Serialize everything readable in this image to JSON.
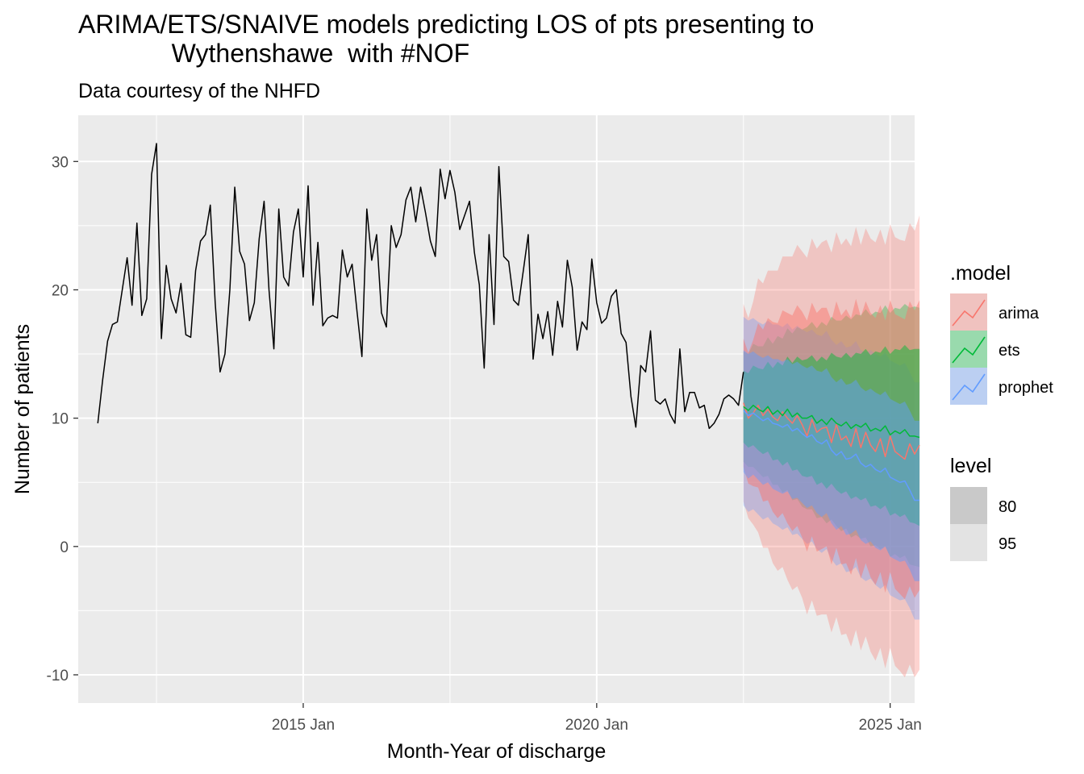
{
  "chart_data": {
    "type": "line",
    "title": "ARIMA/ETS/SNAIVE models predicting LOS of pts presenting to\n             Wythenshawe  with #NOF",
    "subtitle": "Data courtesy of the NHFD",
    "xlabel": "Month-Year of discharge",
    "ylabel": "Number of patients",
    "xlim": [
      "2011-03",
      "2025-06"
    ],
    "ylim": [
      -12.2,
      33.6
    ],
    "y_ticks": [
      -10,
      0,
      10,
      20,
      30
    ],
    "x_ticks": [
      {
        "date": "2015-01",
        "label": "2015 Jan"
      },
      {
        "date": "2020-01",
        "label": "2020 Jan"
      },
      {
        "date": "2025-01",
        "label": "2025 Jan"
      }
    ],
    "x_minor_dates": [
      "2012-07",
      "2017-07",
      "2022-07"
    ],
    "grid": true,
    "legend_position": "right",
    "history": {
      "start": "2011-07",
      "values": [
        9.6,
        13.0,
        16.0,
        17.3,
        17.5,
        20.0,
        22.5,
        18.8,
        25.2,
        18.0,
        19.3,
        29.0,
        31.4,
        16.2,
        21.9,
        19.3,
        18.2,
        20.5,
        16.5,
        16.3,
        21.5,
        23.8,
        24.3,
        26.6,
        19.0,
        13.6,
        15.0,
        20.0,
        28.0,
        23.0,
        22.0,
        17.6,
        19.0,
        24.0,
        26.9,
        20.0,
        15.4,
        26.3,
        21.0,
        20.3,
        24.5,
        26.3,
        21.0,
        28.1,
        18.8,
        23.7,
        17.2,
        17.8,
        18.0,
        17.8,
        23.1,
        21.0,
        22.0,
        18.3,
        14.8,
        26.3,
        22.3,
        24.3,
        18.2,
        17.1,
        25.0,
        23.3,
        24.3,
        27.0,
        28.0,
        25.3,
        28.0,
        26.0,
        23.8,
        22.6,
        29.4,
        27.1,
        29.3,
        27.6,
        24.7,
        25.8,
        26.9,
        22.9,
        20.4,
        13.9,
        24.3,
        17.3,
        29.6,
        22.6,
        22.2,
        19.2,
        18.8,
        21.5,
        24.3,
        14.6,
        18.1,
        16.2,
        18.3,
        14.9,
        19.1,
        17.1,
        22.3,
        20.2,
        15.3,
        17.5,
        16.9,
        22.4,
        19.0,
        17.4,
        17.8,
        19.5,
        20.0,
        16.6,
        15.9,
        11.7,
        9.3,
        14.1,
        13.6,
        16.8,
        11.4,
        11.1,
        11.5,
        10.3,
        9.6,
        15.4,
        10.5,
        12.0,
        12.0,
        10.8,
        11.0,
        9.2,
        9.6,
        10.3,
        11.5,
        11.8,
        11.5,
        11.0,
        13.6
      ]
    },
    "forecast_start": "2022-07",
    "series": [
      {
        "name": "arima",
        "color": "#F8766D",
        "mean": [
          11.2,
          10.0,
          10.4,
          11.0,
          10.2,
          10.7,
          10.1,
          9.8,
          10.5,
          10.0,
          9.6,
          10.2,
          9.5,
          8.6,
          9.9,
          8.9,
          9.2,
          9.3,
          8.1,
          9.5,
          8.3,
          8.6,
          7.8,
          9.2,
          7.7,
          8.9,
          7.9,
          7.4,
          8.4,
          7.0,
          8.6,
          7.4,
          7.1,
          6.8,
          8.0,
          7.2,
          7.9
        ],
        "lo80": [
          6.2,
          4.9,
          4.7,
          4.6,
          3.5,
          3.6,
          2.7,
          2.2,
          2.6,
          1.8,
          1.2,
          1.6,
          0.7,
          -0.4,
          0.8,
          -0.4,
          -0.2,
          0.0,
          -1.4,
          -0.1,
          -1.4,
          -1.3,
          -2.2,
          -0.9,
          -2.5,
          -1.3,
          -2.4,
          -3.0,
          -2.0,
          -3.6,
          -2.0,
          -3.3,
          -3.7,
          -4.1,
          -3.1,
          -4.0,
          -3.4
        ],
        "hi80": [
          16.2,
          15.1,
          16.1,
          17.4,
          16.9,
          17.8,
          17.5,
          17.4,
          18.4,
          18.2,
          18.0,
          18.8,
          18.3,
          17.6,
          19.0,
          18.2,
          18.6,
          18.6,
          17.6,
          19.1,
          18.0,
          18.5,
          17.8,
          19.3,
          17.9,
          19.1,
          18.2,
          17.8,
          18.8,
          17.6,
          19.2,
          18.1,
          17.9,
          17.7,
          19.1,
          18.4,
          19.2
        ],
        "lo95": [
          3.5,
          2.2,
          1.7,
          1.1,
          -0.1,
          -0.1,
          -1.3,
          -1.9,
          -1.6,
          -2.6,
          -3.4,
          -3.1,
          -4.0,
          -5.3,
          -4.2,
          -5.4,
          -5.3,
          -5.3,
          -6.7,
          -5.5,
          -6.9,
          -6.8,
          -7.8,
          -6.5,
          -8.1,
          -7.0,
          -8.2,
          -8.9,
          -7.9,
          -9.5,
          -7.9,
          -9.3,
          -9.7,
          -10.2,
          -9.2,
          -10.2,
          -9.6
        ],
        "hi95": [
          18.9,
          17.8,
          19.1,
          20.9,
          20.5,
          21.5,
          21.5,
          21.5,
          22.6,
          22.6,
          22.6,
          23.5,
          23.0,
          22.5,
          24.0,
          23.2,
          23.7,
          23.9,
          22.9,
          24.5,
          23.5,
          24.0,
          23.4,
          24.9,
          23.5,
          24.8,
          24.0,
          23.7,
          24.7,
          23.5,
          25.1,
          24.1,
          23.9,
          23.8,
          25.2,
          24.6,
          25.8
        ]
      },
      {
        "name": "ets",
        "color": "#00BA38",
        "mean": [
          10.9,
          10.6,
          11.0,
          10.7,
          10.5,
          10.9,
          10.3,
          10.6,
          10.2,
          10.7,
          10.1,
          10.4,
          10.0,
          10.0,
          10.2,
          9.6,
          9.9,
          9.5,
          10.0,
          9.6,
          9.4,
          9.7,
          9.2,
          9.5,
          9.3,
          9.6,
          9.0,
          9.2,
          9.0,
          9.4,
          8.7,
          9.0,
          8.8,
          9.1,
          8.6,
          8.6,
          8.5
        ],
        "lo80": [
          8.1,
          7.7,
          7.9,
          7.5,
          7.2,
          7.4,
          6.7,
          6.8,
          6.3,
          6.6,
          5.9,
          6.0,
          5.5,
          5.4,
          5.5,
          4.8,
          5.0,
          4.5,
          4.9,
          4.4,
          4.1,
          4.3,
          3.7,
          3.9,
          3.6,
          3.8,
          3.1,
          3.2,
          2.9,
          3.2,
          2.4,
          2.6,
          2.3,
          2.5,
          1.9,
          1.8,
          1.6
        ],
        "hi80": [
          13.7,
          13.5,
          14.1,
          13.9,
          13.8,
          14.4,
          13.9,
          14.4,
          14.1,
          14.8,
          14.3,
          14.8,
          14.5,
          14.6,
          14.9,
          14.4,
          14.8,
          14.5,
          15.1,
          14.8,
          14.7,
          15.1,
          14.7,
          15.1,
          15.0,
          15.4,
          14.9,
          15.2,
          15.1,
          15.6,
          15.0,
          15.4,
          15.3,
          15.7,
          15.3,
          15.4,
          15.4
        ],
        "lo95": [
          6.6,
          6.2,
          6.2,
          5.8,
          5.4,
          5.5,
          4.8,
          4.8,
          4.2,
          4.4,
          3.6,
          3.7,
          3.1,
          2.9,
          2.9,
          2.2,
          2.3,
          1.8,
          2.1,
          1.6,
          1.2,
          1.4,
          0.7,
          0.9,
          0.6,
          0.7,
          0.0,
          0.1,
          -0.2,
          0.0,
          -0.8,
          -0.6,
          -0.9,
          -0.7,
          -1.4,
          -1.5,
          -1.6
        ],
        "hi95": [
          15.2,
          15.0,
          15.8,
          15.6,
          15.6,
          16.3,
          15.8,
          16.4,
          16.2,
          17.0,
          16.6,
          17.1,
          16.9,
          17.1,
          17.5,
          17.0,
          17.5,
          17.2,
          17.9,
          17.6,
          17.6,
          18.0,
          17.7,
          18.1,
          18.0,
          18.5,
          18.0,
          18.3,
          18.2,
          18.8,
          18.2,
          18.6,
          18.5,
          18.9,
          18.6,
          18.7,
          18.6
        ]
      },
      {
        "name": "prophet",
        "color": "#619CFF",
        "mean": [
          10.6,
          10.2,
          10.4,
          10.1,
          9.8,
          10.0,
          9.6,
          9.5,
          9.3,
          9.5,
          9.0,
          9.2,
          8.8,
          8.5,
          8.7,
          8.2,
          8.0,
          8.3,
          7.5,
          7.1,
          7.4,
          6.8,
          6.9,
          7.2,
          6.5,
          6.2,
          6.4,
          6.0,
          5.8,
          6.1,
          5.4,
          5.2,
          5.0,
          5.1,
          4.4,
          3.6,
          3.6
        ],
        "lo80": [
          5.8,
          5.3,
          5.6,
          5.2,
          4.8,
          5.0,
          4.5,
          4.3,
          4.1,
          4.3,
          3.7,
          3.8,
          3.4,
          3.0,
          3.2,
          2.6,
          2.3,
          2.6,
          1.8,
          1.3,
          1.6,
          0.9,
          1.0,
          1.3,
          0.5,
          0.2,
          0.4,
          -0.1,
          -0.3,
          0.0,
          -0.8,
          -1.0,
          -1.2,
          -1.1,
          -1.8,
          -2.7,
          -2.7
        ],
        "hi80": [
          15.3,
          15.0,
          15.2,
          14.9,
          14.7,
          14.9,
          14.6,
          14.6,
          14.4,
          14.6,
          14.2,
          14.4,
          14.1,
          13.9,
          14.1,
          13.7,
          13.6,
          13.9,
          13.2,
          12.8,
          13.1,
          12.6,
          12.7,
          13.0,
          12.4,
          12.1,
          12.3,
          12.0,
          11.8,
          12.1,
          11.5,
          11.3,
          11.1,
          11.3,
          10.6,
          9.8,
          9.8
        ],
        "lo95": [
          3.2,
          2.7,
          2.9,
          2.5,
          2.1,
          2.3,
          1.8,
          1.6,
          1.3,
          1.5,
          0.9,
          1.0,
          0.6,
          0.2,
          0.4,
          -0.2,
          -0.5,
          -0.2,
          -1.0,
          -1.5,
          -1.3,
          -2.0,
          -1.9,
          -1.6,
          -2.4,
          -2.7,
          -2.5,
          -3.0,
          -3.3,
          -3.0,
          -3.8,
          -4.0,
          -4.2,
          -4.1,
          -4.8,
          -5.7,
          -5.7
        ],
        "hi95": [
          17.9,
          17.6,
          17.8,
          17.5,
          17.3,
          17.6,
          17.3,
          17.3,
          17.1,
          17.4,
          16.9,
          17.2,
          16.9,
          16.7,
          16.9,
          16.5,
          16.4,
          16.8,
          16.1,
          15.7,
          16.0,
          15.5,
          15.6,
          16.0,
          15.3,
          15.1,
          15.3,
          15.0,
          14.8,
          15.1,
          14.5,
          14.3,
          14.1,
          14.3,
          13.6,
          12.8,
          12.8
        ]
      }
    ],
    "legend": {
      "model_title": ".model",
      "model_items": [
        "arima",
        "ets",
        "prophet"
      ],
      "level_title": "level",
      "level_items": [
        "80",
        "95"
      ]
    }
  }
}
